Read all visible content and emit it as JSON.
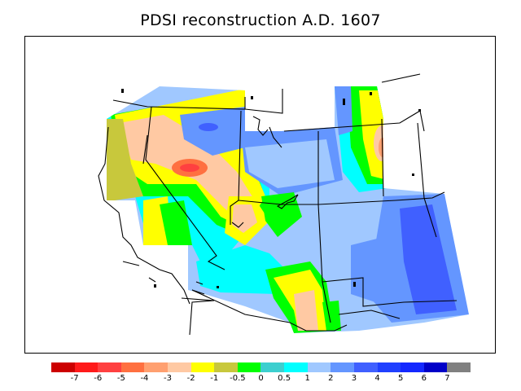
{
  "title": "PDSI reconstruction A.D. 1607",
  "legend": {
    "colors": [
      "#cc0000",
      "#ff1a1a",
      "#ff4040",
      "#ff7040",
      "#ffa070",
      "#ffc9a3",
      "#ffff00",
      "#c8c83c",
      "#00ff00",
      "#3ccfcf",
      "#00ffff",
      "#a0c8ff",
      "#6496ff",
      "#4060ff",
      "#2040ff",
      "#1428ff",
      "#0000c8",
      "#808080"
    ],
    "labels": [
      "-7",
      "-6",
      "-5",
      "-4",
      "-3",
      "-2",
      "-1",
      "-0.5",
      "0",
      "0.5",
      "1",
      "2",
      "3",
      "4",
      "5",
      "6",
      "7"
    ]
  },
  "map_colors": {
    "ocean": "#ffffff",
    "land_no_data": "#ffffff",
    "boundary": "#000000"
  }
}
